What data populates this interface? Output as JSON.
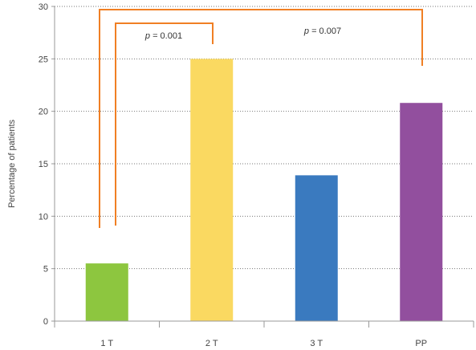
{
  "chart_data": {
    "type": "bar",
    "categories": [
      "1 T",
      "2 T",
      "3 T",
      "PP"
    ],
    "values": [
      5.5,
      25,
      13.9,
      20.8
    ],
    "colors": [
      "#8dc63f",
      "#fad961",
      "#3a7abf",
      "#924f9e"
    ],
    "ylabel": "Percentage of patients",
    "ylim": [
      0,
      30
    ],
    "yticks": [
      0,
      5,
      10,
      15,
      20,
      25,
      30
    ],
    "grid": "horizontal dotted",
    "annotations": [
      {
        "from": "1 T",
        "to": "2 T",
        "italic": "p",
        "text": " = 0.001"
      },
      {
        "from": "1 T",
        "to": "PP",
        "italic": "p",
        "text": " = 0.007"
      }
    ],
    "bracket_color": "#f07f24"
  }
}
